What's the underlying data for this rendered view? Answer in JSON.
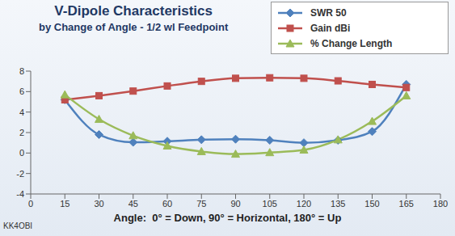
{
  "chart_data": {
    "type": "line",
    "title": "V-Dipole Characteristics",
    "subtitle": "by Change of Angle - 1/2 wl Feedpoint",
    "x": [
      15,
      30,
      45,
      60,
      75,
      90,
      105,
      120,
      135,
      150,
      165
    ],
    "series": [
      {
        "name": "SWR 50",
        "color": "#4f81bd",
        "marker": "diamond",
        "line_style": "smooth",
        "values": [
          5.2,
          1.8,
          1.05,
          1.15,
          1.3,
          1.35,
          1.25,
          1.0,
          1.25,
          2.1,
          6.7
        ]
      },
      {
        "name": "Gain dBi",
        "color": "#c0504d",
        "marker": "square",
        "line_style": "smooth",
        "values": [
          5.2,
          5.6,
          6.05,
          6.55,
          7.0,
          7.3,
          7.35,
          7.3,
          7.05,
          6.7,
          6.4
        ]
      },
      {
        "name": "% Change Length",
        "color": "#9bbb59",
        "marker": "triangle",
        "line_style": "smooth",
        "values": [
          5.7,
          3.3,
          1.7,
          0.7,
          0.15,
          -0.1,
          0.05,
          0.3,
          1.3,
          3.1,
          5.6
        ]
      }
    ],
    "xlim": [
      0,
      180
    ],
    "xticks": [
      0,
      15,
      30,
      45,
      60,
      75,
      90,
      105,
      120,
      135,
      150,
      165,
      180
    ],
    "ylim": [
      -4,
      8
    ],
    "yticks": [
      -4,
      -2,
      0,
      2,
      4,
      6,
      8
    ],
    "grid": false,
    "legend": "top-right",
    "annotations": [
      "Angle:  0° = Down, 90° = Horizontal, 180° = Up",
      "KK4OBI"
    ]
  }
}
